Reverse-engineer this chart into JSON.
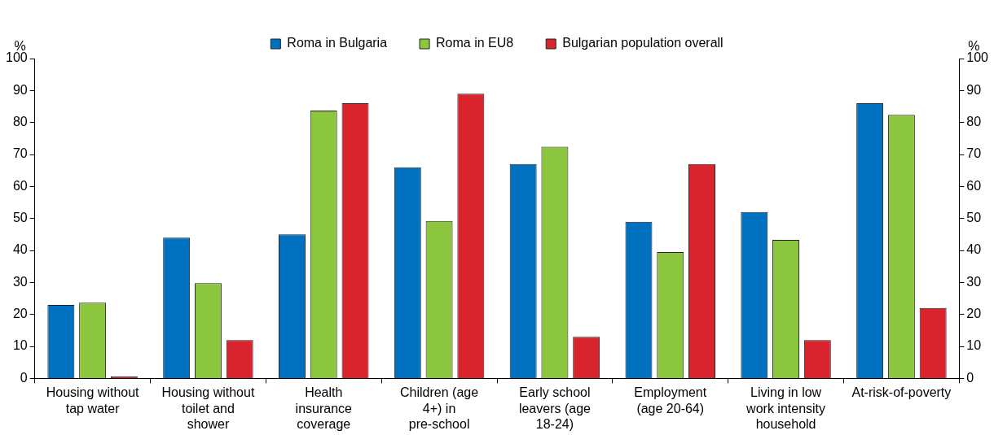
{
  "chart_data": {
    "type": "bar",
    "categories": [
      "Housing without tap water",
      "Housing without toilet and shower",
      "Health insurance coverage",
      "Children (age 4+) in pre-school",
      "Early school leavers (age 18-24)",
      "Employment (age 20-64)",
      "Living in low work intensity household",
      "At-risk-of-poverty"
    ],
    "series": [
      {
        "name": "Roma in Bulgaria",
        "color": "#0070c0",
        "values": [
          23,
          44,
          45,
          66,
          67,
          49,
          52,
          86
        ]
      },
      {
        "name": "Roma in EU8",
        "color": "#8cc63f",
        "values": [
          23.7,
          29.8,
          83.7,
          49.2,
          72.4,
          39.5,
          43.3,
          82.4
        ]
      },
      {
        "name": "Bulgarian population overall",
        "color": "#d9232d",
        "values": [
          0.7,
          12,
          86,
          89,
          13,
          67,
          12,
          22
        ]
      }
    ],
    "ylabel": "%",
    "y2label": "%",
    "ylim": [
      0,
      100
    ],
    "yticks": [
      0,
      10,
      20,
      30,
      40,
      50,
      60,
      70,
      80,
      90,
      100
    ],
    "y2lim": [
      0,
      100
    ],
    "y2ticks": [
      0,
      10,
      20,
      30,
      40,
      50,
      60,
      70,
      80,
      90,
      100
    ],
    "grid": false,
    "legend": "top"
  }
}
